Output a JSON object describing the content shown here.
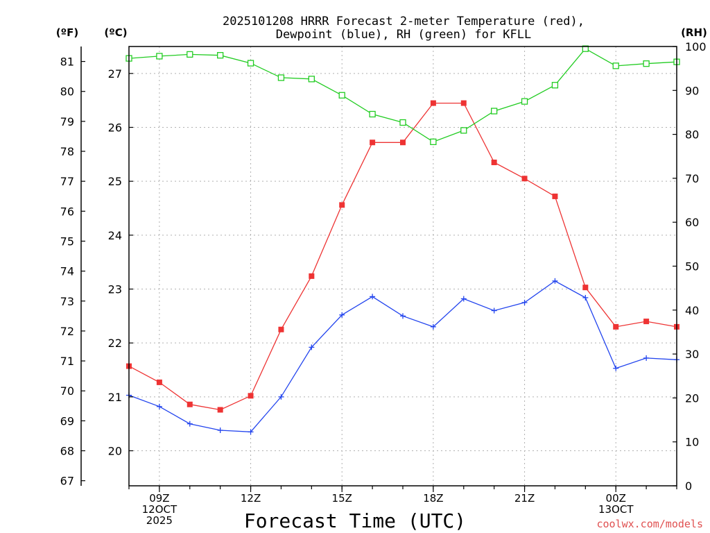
{
  "chart_data": {
    "type": "line",
    "title_line1": "2025101208 HRRR Forecast 2-meter Temperature (red),",
    "title_line2": "Dewpoint (blue), RH (green) for KFLL",
    "xlabel": "Forecast Time (UTC)",
    "credit": "coolwx.com/models",
    "left_axis_f_label": "(ºF)",
    "left_axis_c_label": "(ºC)",
    "right_axis_label": "(RH)",
    "x_hours": [
      8,
      9,
      10,
      11,
      12,
      13,
      14,
      15,
      16,
      17,
      18,
      19,
      20,
      21,
      22,
      23,
      24,
      25,
      26
    ],
    "xlim": [
      8,
      26
    ],
    "x_ticks": [
      {
        "hour": 9,
        "lines": [
          "09Z",
          "12OCT",
          "2025"
        ]
      },
      {
        "hour": 12,
        "lines": [
          "12Z"
        ]
      },
      {
        "hour": 15,
        "lines": [
          "15Z"
        ]
      },
      {
        "hour": 18,
        "lines": [
          "18Z"
        ]
      },
      {
        "hour": 21,
        "lines": [
          "21Z"
        ]
      },
      {
        "hour": 24,
        "lines": [
          "00Z",
          "13OCT"
        ]
      }
    ],
    "ylim_celsius": [
      19.35,
      27.5
    ],
    "celsius_ticks": [
      20,
      21,
      22,
      23,
      24,
      25,
      26,
      27
    ],
    "fahrenheit_ticks": [
      67,
      68,
      69,
      70,
      71,
      72,
      73,
      74,
      75,
      76,
      77,
      78,
      79,
      80,
      81
    ],
    "ylim_rh": [
      0,
      100
    ],
    "rh_ticks": [
      0,
      10,
      20,
      30,
      40,
      50,
      60,
      70,
      80,
      90,
      100
    ],
    "series": [
      {
        "name": "Temperature",
        "axis": "celsius",
        "color": "#ee3333",
        "marker": "filled-square",
        "values": [
          21.57,
          21.27,
          20.86,
          20.76,
          21.02,
          22.25,
          23.24,
          24.56,
          25.72,
          25.72,
          26.45,
          26.45,
          25.35,
          25.05,
          24.72,
          23.03,
          22.3,
          22.4,
          22.3
        ]
      },
      {
        "name": "Dewpoint",
        "axis": "celsius",
        "color": "#2244ee",
        "marker": "plus",
        "values": [
          21.03,
          20.82,
          20.5,
          20.38,
          20.35,
          21.0,
          21.92,
          22.52,
          22.86,
          22.5,
          22.3,
          22.82,
          22.6,
          22.75,
          23.15,
          22.84,
          21.53,
          21.72,
          21.69
        ]
      },
      {
        "name": "RH",
        "axis": "rh",
        "color": "#22cc22",
        "marker": "open-square",
        "values": [
          97.3,
          97.8,
          98.2,
          98.0,
          96.2,
          92.9,
          92.6,
          88.9,
          84.6,
          82.7,
          78.3,
          80.9,
          85.3,
          87.5,
          91.2,
          99.5,
          95.6,
          96.1,
          96.5
        ]
      }
    ]
  }
}
